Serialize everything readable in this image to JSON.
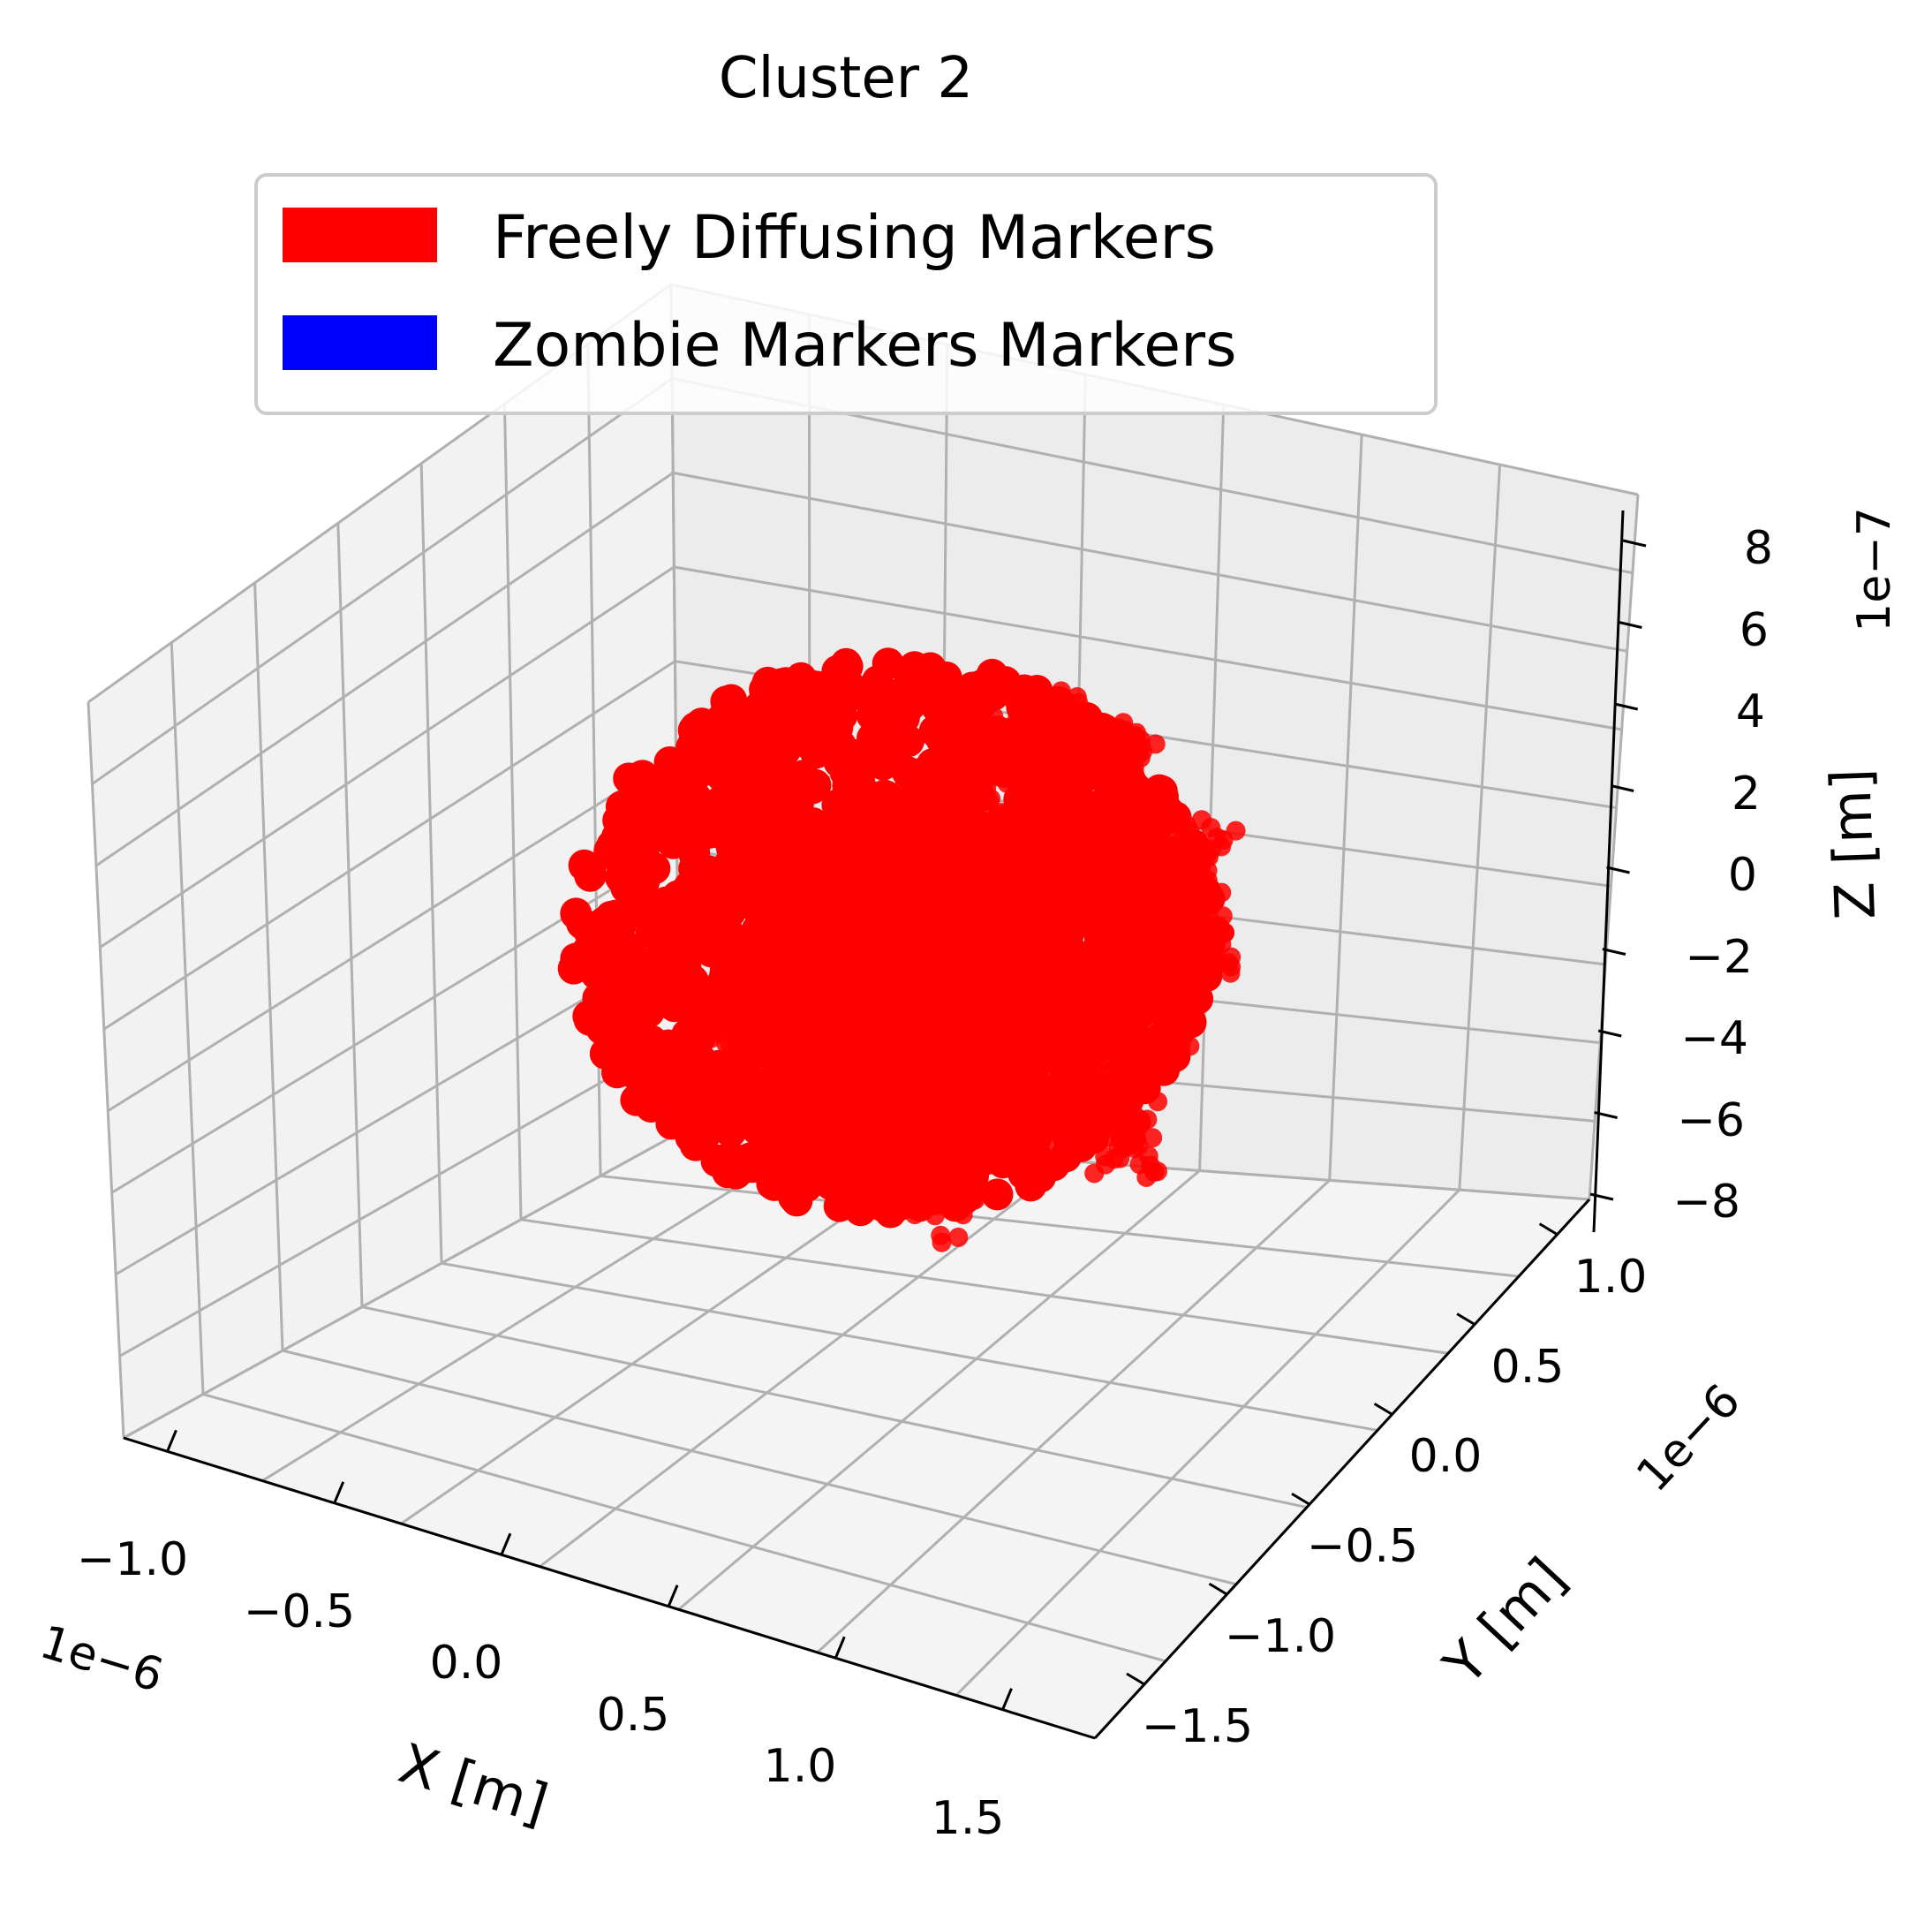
{
  "chart_data": {
    "type": "scatter",
    "projection": "3d",
    "title": "Cluster 2",
    "xlabel": "X [m]",
    "ylabel": "Y [m]",
    "zlabel": "Z [m]",
    "x_scale_label": "1e−6",
    "y_scale_label": "1e−6",
    "z_scale_label": "1e−7",
    "x_ticks": [
      "−1.0",
      "−0.5",
      "0.0",
      "0.5",
      "1.0",
      "1.5"
    ],
    "y_ticks": [
      "−1.5",
      "−1.0",
      "−0.5",
      "0.0",
      "0.5",
      "1.0"
    ],
    "z_ticks": [
      "−8",
      "−6",
      "−4",
      "−2",
      "0",
      "2",
      "4",
      "6",
      "8"
    ],
    "xlim": [
      -1.1e-06,
      1.85e-06
    ],
    "ylim": [
      -1.75e-06,
      1.25e-06
    ],
    "zlim": [
      -8.5e-07,
      8.8e-07
    ],
    "grid": true,
    "legend_position": "top",
    "legend": [
      {
        "label": "Freely Diffusing Markers",
        "color": "#ff0000"
      },
      {
        "label": "Zombie Markers Markers",
        "color": "#0000ff"
      }
    ],
    "series": [
      {
        "name": "Freely Diffusing Markers",
        "color": "#ff0000",
        "description_points": "random-walk trajectory, several thousand points, centered near (0.3e-6, -0.2e-6, 0)"
      }
    ]
  }
}
